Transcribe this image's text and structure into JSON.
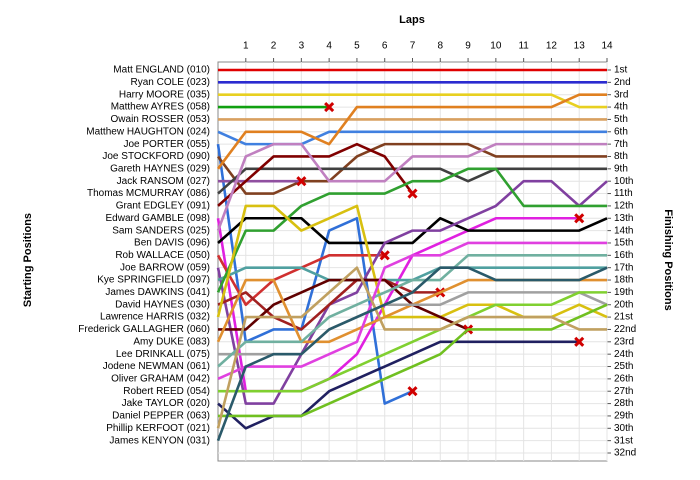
{
  "chart_data": {
    "type": "line",
    "title": "Laps",
    "y_label": "Starting Positions",
    "y2_label": "Finishing Positions",
    "x": [
      0,
      1,
      2,
      3,
      4,
      5,
      6,
      7,
      8,
      9,
      10,
      11,
      12,
      13,
      14
    ],
    "xlim": [
      0,
      14
    ],
    "xticks": [
      1,
      2,
      3,
      4,
      5,
      6,
      7,
      8,
      9,
      10,
      11,
      12,
      13,
      14
    ],
    "ylim": [
      1,
      32
    ],
    "yticks": [
      {
        "value": 1,
        "label": "1st"
      },
      {
        "value": 2,
        "label": "2nd"
      },
      {
        "value": 3,
        "label": "3rd"
      },
      {
        "value": 4,
        "label": "4th"
      },
      {
        "value": 5,
        "label": "5th"
      },
      {
        "value": 6,
        "label": "6th"
      },
      {
        "value": 7,
        "label": "7th"
      },
      {
        "value": 8,
        "label": "8th"
      },
      {
        "value": 9,
        "label": "9th"
      },
      {
        "value": 10,
        "label": "10th"
      },
      {
        "value": 11,
        "label": "11th"
      },
      {
        "value": 12,
        "label": "12th"
      },
      {
        "value": 13,
        "label": "13th"
      },
      {
        "value": 14,
        "label": "14th"
      },
      {
        "value": 15,
        "label": "15th"
      },
      {
        "value": 16,
        "label": "16th"
      },
      {
        "value": 17,
        "label": "17th"
      },
      {
        "value": 18,
        "label": "18th"
      },
      {
        "value": 19,
        "label": "19th"
      },
      {
        "value": 20,
        "label": "20th"
      },
      {
        "value": 21,
        "label": "21st"
      },
      {
        "value": 22,
        "label": "22nd"
      },
      {
        "value": 23,
        "label": "23rd"
      },
      {
        "value": 24,
        "label": "24th"
      },
      {
        "value": 25,
        "label": "25th"
      },
      {
        "value": 26,
        "label": "26th"
      },
      {
        "value": 27,
        "label": "27th"
      },
      {
        "value": 28,
        "label": "28th"
      },
      {
        "value": 29,
        "label": "29th"
      },
      {
        "value": 30,
        "label": "30th"
      },
      {
        "value": 31,
        "label": "31st"
      },
      {
        "value": 32,
        "label": "32nd"
      }
    ],
    "grid": true,
    "series": [
      {
        "name": "Matt ENGLAND (010)",
        "color": "#e00000",
        "values": [
          1,
          1,
          1,
          1,
          1,
          1,
          1,
          1,
          1,
          1,
          1,
          1,
          1,
          1,
          1
        ]
      },
      {
        "name": "Ryan COLE (023)",
        "color": "#2b2bd0",
        "values": [
          2,
          2,
          2,
          2,
          2,
          2,
          2,
          2,
          2,
          2,
          2,
          2,
          2,
          2,
          2
        ]
      },
      {
        "name": "Harry MOORE (035)",
        "color": "#e8d020",
        "values": [
          3,
          3,
          3,
          3,
          3,
          3,
          3,
          3,
          3,
          3,
          3,
          3,
          3,
          4,
          4
        ]
      },
      {
        "name": "Matthew AYRES (058)",
        "color": "#10a010",
        "values": [
          4,
          4,
          4,
          4,
          4,
          null,
          null,
          null,
          null,
          null,
          null,
          null,
          null,
          null,
          null
        ]
      },
      {
        "name": "Owain ROSSER (053)",
        "color": "#d8a060",
        "values": [
          5,
          5,
          5,
          5,
          5,
          5,
          5,
          5,
          5,
          5,
          5,
          5,
          5,
          5,
          5
        ]
      },
      {
        "name": "Matthew HAUGHTON (024)",
        "color": "#4080e0",
        "values": [
          6,
          7,
          7,
          7,
          6,
          6,
          6,
          6,
          6,
          6,
          6,
          6,
          6,
          6,
          6
        ]
      },
      {
        "name": "Joe PORTER (055)",
        "color": "#3070d8",
        "values": [
          7,
          23,
          22,
          22,
          14,
          13,
          28,
          27,
          null,
          null,
          null,
          null,
          null,
          null,
          null
        ]
      },
      {
        "name": "Joe STOCKFORD (090)",
        "color": "#804020",
        "values": [
          8,
          11,
          11,
          10,
          10,
          8,
          7,
          7,
          7,
          7,
          8,
          8,
          8,
          8,
          8
        ]
      },
      {
        "name": "Gareth HAYNES (029)",
        "color": "#e08020",
        "values": [
          9,
          6,
          6,
          6,
          7,
          4,
          4,
          4,
          4,
          4,
          4,
          4,
          4,
          3,
          3
        ]
      },
      {
        "name": "Jack RANSOM (027)",
        "color": "#9050a0",
        "values": [
          10,
          10,
          10,
          10,
          null,
          null,
          null,
          null,
          null,
          null,
          null,
          null,
          null,
          null,
          null
        ]
      },
      {
        "name": "Thomas MCMURRAY (086)",
        "color": "#404040",
        "values": [
          11,
          9,
          9,
          9,
          9,
          9,
          9,
          9,
          9,
          10,
          9,
          9,
          9,
          9,
          9
        ]
      },
      {
        "name": "Grant EDGLEY (091)",
        "color": "#800000",
        "values": [
          12,
          10,
          8,
          8,
          8,
          7,
          8,
          11,
          null,
          null,
          null,
          null,
          null,
          null,
          null
        ]
      },
      {
        "name": "Edward GAMBLE (098)",
        "color": "#e020e0",
        "values": [
          13,
          27,
          27,
          27,
          26,
          24,
          20,
          16,
          15,
          14,
          13,
          13,
          13,
          13,
          null
        ]
      },
      {
        "name": "Sam SANDERS (025)",
        "color": "#c080c0",
        "values": [
          14,
          8,
          7,
          7,
          10,
          10,
          10,
          8,
          8,
          8,
          7,
          7,
          7,
          7,
          7
        ]
      },
      {
        "name": "Ben DAVIS (096)",
        "color": "#000000",
        "values": [
          15,
          13,
          13,
          13,
          15,
          15,
          15,
          15,
          13,
          14,
          14,
          14,
          14,
          14,
          13
        ]
      },
      {
        "name": "Rob WALLACE (050)",
        "color": "#d03030",
        "values": [
          16,
          20,
          18,
          17,
          16,
          16,
          16,
          null,
          null,
          null,
          null,
          null,
          null,
          null,
          null
        ]
      },
      {
        "name": "Joe BARROW (059)",
        "color": "#8040a0",
        "values": [
          17,
          28,
          28,
          24,
          20,
          19,
          15,
          14,
          14,
          13,
          12,
          10,
          10,
          12,
          10
        ]
      },
      {
        "name": "Kye SPRINGFIELD (097)",
        "color": "#50a0a0",
        "values": [
          18,
          17,
          17,
          17,
          18,
          18,
          18,
          18,
          17,
          17,
          17,
          17,
          17,
          17,
          17
        ]
      },
      {
        "name": "James DAWKINS (041)",
        "color": "#30a030",
        "values": [
          19,
          14,
          14,
          12,
          11,
          11,
          11,
          10,
          10,
          9,
          9,
          12,
          12,
          12,
          12
        ]
      },
      {
        "name": "David HAYNES (030)",
        "color": "#a02020",
        "values": [
          20,
          19,
          21,
          22,
          20,
          18,
          18,
          19,
          19,
          null,
          null,
          null,
          null,
          null,
          null
        ]
      },
      {
        "name": "Lawrence HARRIS (032)",
        "color": "#d8c010",
        "values": [
          21,
          12,
          12,
          14,
          13,
          12,
          21,
          21,
          21,
          20,
          20,
          21,
          21,
          20,
          21
        ]
      },
      {
        "name": "Frederick GALLAGHER (060)",
        "color": "#600000",
        "values": [
          22,
          22,
          20,
          19,
          18,
          18,
          18,
          20,
          21,
          22,
          null,
          null,
          null,
          null,
          null
        ]
      },
      {
        "name": "Amy DUKE (083)",
        "color": "#e09030",
        "values": [
          23,
          18,
          18,
          23,
          23,
          22,
          21,
          20,
          19,
          18,
          18,
          18,
          18,
          18,
          18
        ]
      },
      {
        "name": "Lee DRINKALL (075)",
        "color": "#a0a0a0",
        "values": [
          24,
          24,
          24,
          24,
          22,
          21,
          20,
          20,
          20,
          19,
          19,
          19,
          19,
          19,
          20
        ]
      },
      {
        "name": "Jodene NEWMAN (061)",
        "color": "#70b0a0",
        "values": [
          25,
          23,
          23,
          23,
          21,
          20,
          19,
          18,
          18,
          16,
          16,
          16,
          16,
          16,
          16
        ]
      },
      {
        "name": "Oliver GRAHAM (042)",
        "color": "#e040e0",
        "values": [
          26,
          25,
          25,
          25,
          24,
          23,
          17,
          16,
          16,
          15,
          15,
          15,
          15,
          15,
          15
        ]
      },
      {
        "name": "Robert REED (054)",
        "color": "#80d030",
        "values": [
          27,
          27,
          27,
          27,
          26,
          25,
          24,
          23,
          22,
          21,
          20,
          20,
          20,
          19,
          19
        ]
      },
      {
        "name": "Jake TAYLOR (020)",
        "color": "#202060",
        "values": [
          28,
          30,
          29,
          29,
          27,
          26,
          25,
          24,
          23,
          23,
          23,
          23,
          23,
          23,
          null
        ]
      },
      {
        "name": "Daniel PEPPER (063)",
        "color": "#70c020",
        "values": [
          29,
          29,
          29,
          29,
          28,
          27,
          26,
          25,
          24,
          22,
          22,
          22,
          22,
          21,
          20
        ]
      },
      {
        "name": "Phillip KERFOOT (021)",
        "color": "#c0a060",
        "values": [
          30,
          21,
          21,
          21,
          19,
          17,
          22,
          22,
          22,
          21,
          21,
          21,
          21,
          22,
          22
        ]
      },
      {
        "name": "James KENYON (031)",
        "color": "#2a5a6a",
        "values": [
          31,
          25,
          24,
          24,
          22,
          21,
          20,
          19,
          17,
          17,
          18,
          18,
          18,
          18,
          17
        ]
      }
    ]
  }
}
